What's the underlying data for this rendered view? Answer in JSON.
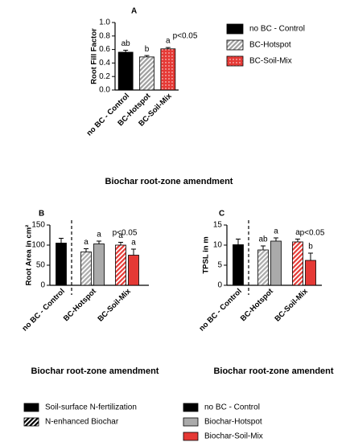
{
  "chart_data": [
    {
      "type": "bar",
      "title": "A",
      "annotation": "p<0.05",
      "ylabel": "Root Fill Factor",
      "xlabel": "Biochar root-zone amendment",
      "categories": [
        "no BC - Control",
        "BC-Hotspot",
        "BC-Soil-Mix"
      ],
      "values": [
        0.56,
        0.49,
        0.61
      ],
      "errors": [
        0.03,
        0.02,
        0.02
      ],
      "letters": [
        "ab",
        "b",
        "a"
      ],
      "colors": [
        "#000000",
        "#9e9e9e",
        "#e53935"
      ],
      "patterns": [
        "solid",
        "hatch",
        "dots"
      ],
      "ylim": [
        0,
        1.0
      ],
      "yticks": [
        {
          "value": 0,
          "label": "0.0"
        },
        {
          "value": 0.2,
          "label": "0.2"
        },
        {
          "value": 0.4,
          "label": "0.4"
        },
        {
          "value": 0.6,
          "label": "0.6"
        },
        {
          "value": 0.8,
          "label": "0.8"
        },
        {
          "value": 1.0,
          "label": "1.0"
        }
      ],
      "legend": "right"
    },
    {
      "type": "grouped_bar",
      "title": "B",
      "annotation": "p<0.05",
      "ylabel": "Root Area in cm²",
      "xlabel": "Biochar root-zone amendment",
      "categories": [
        "no BC - Control",
        "BC-Hotspot",
        "BC-Soil-Mix"
      ],
      "colors": [
        "#000000",
        "#aaaaaa",
        "#e53935"
      ],
      "series": [
        {
          "pattern": "hatch",
          "values": [
            null,
            83,
            100
          ],
          "errors": [
            null,
            8,
            7
          ],
          "letters": [
            null,
            "a",
            "a"
          ]
        },
        {
          "pattern": "solid",
          "values": [
            105,
            103,
            75
          ],
          "errors": [
            12,
            7,
            15
          ],
          "letters": [
            null,
            "a",
            "a"
          ]
        }
      ],
      "ylim": [
        0,
        150
      ],
      "yticks": [
        0,
        50,
        100,
        150
      ]
    },
    {
      "type": "grouped_bar",
      "title": "C",
      "annotation": "p<0.05",
      "ylabel": "TPSL in m",
      "xlabel": "Biochar root-zone amendent",
      "categories": [
        "no BC - Control",
        "BC-Hotspot",
        "BC-Soil-Mix"
      ],
      "colors": [
        "#000000",
        "#aaaaaa",
        "#e53935"
      ],
      "series": [
        {
          "pattern": "hatch",
          "values": [
            null,
            8.8,
            10.8
          ],
          "errors": [
            null,
            1.0,
            0.7
          ],
          "letters": [
            null,
            "ab",
            "a"
          ]
        },
        {
          "pattern": "solid",
          "values": [
            10.1,
            11.0,
            6.2
          ],
          "errors": [
            1.4,
            0.8,
            1.8
          ],
          "letters": [
            null,
            "a",
            "b"
          ]
        }
      ],
      "ylim": [
        0,
        15
      ],
      "yticks": [
        0,
        5,
        10,
        15
      ]
    }
  ],
  "legend": {
    "patterns": [
      {
        "name": "Soil-surface N-fertilization",
        "pattern": "solid"
      },
      {
        "name": "N-enhanced Biochar",
        "pattern": "hatch"
      }
    ],
    "colors": [
      {
        "name": "no BC - Control",
        "color": "#000000"
      },
      {
        "name": "Biochar-Hotspot",
        "color": "#aaaaaa"
      },
      {
        "name": "Biochar-Soil-Mix",
        "color": "#e53935"
      }
    ]
  }
}
